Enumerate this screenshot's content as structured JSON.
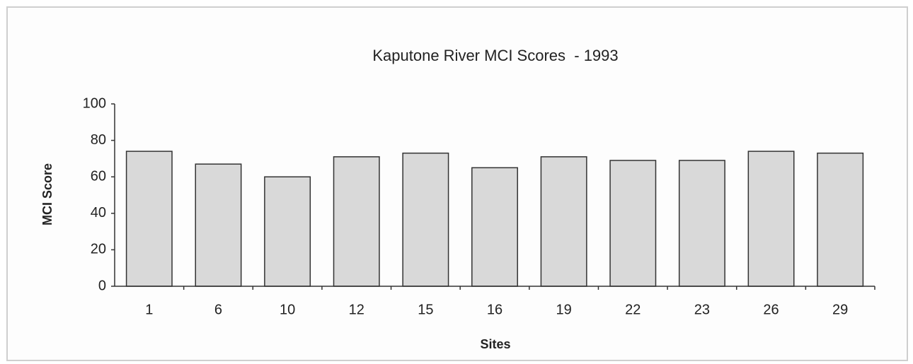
{
  "chart_data": {
    "type": "bar",
    "title": "Kaputone River MCI Scores  - 1993",
    "x_label": "Sites",
    "y_label": "MCI Score",
    "categories": [
      "1",
      "6",
      "10",
      "12",
      "15",
      "16",
      "19",
      "22",
      "23",
      "26",
      "29"
    ],
    "values": [
      74,
      67,
      60,
      71,
      73,
      65,
      71,
      69,
      69,
      74,
      73
    ],
    "color": "#d9d9d9",
    "ylim": [
      0,
      100
    ],
    "yticks": [
      0,
      20,
      40,
      60,
      80,
      100
    ],
    "grid": false
  }
}
